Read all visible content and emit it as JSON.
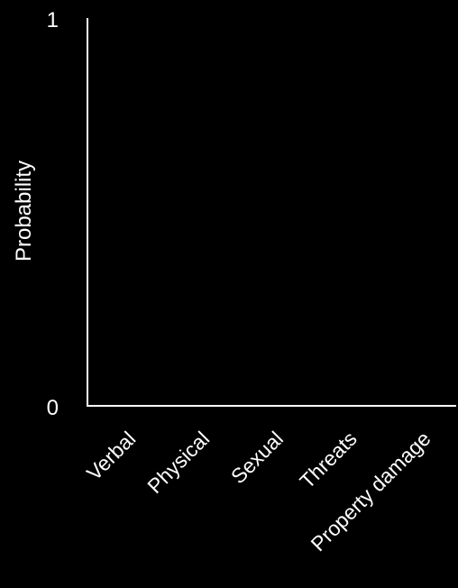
{
  "chart_data": {
    "type": "bar",
    "title": "",
    "xlabel": "",
    "ylabel": "Probability",
    "ylim": [
      0,
      1
    ],
    "yticks": [
      "0",
      "1"
    ],
    "categories": [
      "Verbal",
      "Physical",
      "Sexual",
      "Threats",
      "Property damage"
    ],
    "values": [
      null,
      null,
      null,
      null,
      null
    ],
    "grid": false,
    "colors": {
      "background": "#000000",
      "foreground": "#ffffff"
    }
  }
}
